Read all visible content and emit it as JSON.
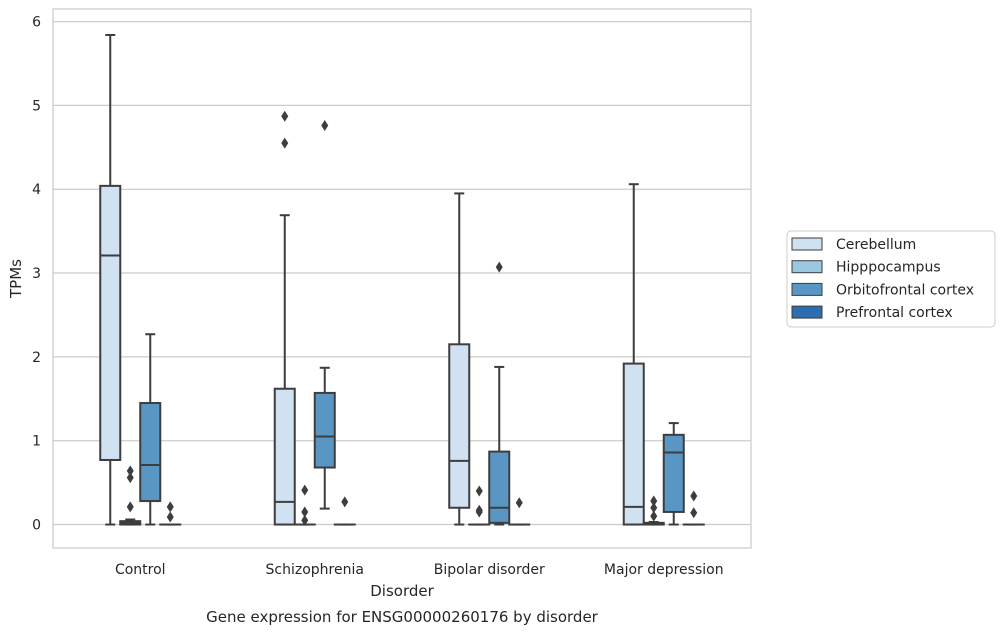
{
  "chart_data": {
    "type": "box",
    "title": "Gene expression for ENSG00000260176 by disorder",
    "xlabel": "Disorder",
    "ylabel": "TPMs",
    "ylim": [
      -0.28,
      6.15
    ],
    "yticks": [
      0,
      1,
      2,
      3,
      4,
      5,
      6
    ],
    "grid": true,
    "legend_position": "right",
    "categories": [
      "Control",
      "Schizophrenia",
      "Bipolar disorder",
      "Major depression"
    ],
    "series": [
      {
        "name": "Cerebellum",
        "color": "#d0e1f2",
        "boxes": [
          {
            "whisker_low": 0,
            "q1": 0.77,
            "median": 3.21,
            "q3": 4.04,
            "whisker_high": 5.84,
            "outliers": []
          },
          {
            "whisker_low": 0,
            "q1": 0,
            "median": 0.27,
            "q3": 1.62,
            "whisker_high": 3.69,
            "outliers": [
              4.55,
              4.87
            ]
          },
          {
            "whisker_low": 0,
            "q1": 0.2,
            "median": 0.76,
            "q3": 2.15,
            "whisker_high": 3.95,
            "outliers": []
          },
          {
            "whisker_low": 0,
            "q1": 0,
            "median": 0.21,
            "q3": 1.92,
            "whisker_high": 4.06,
            "outliers": []
          }
        ]
      },
      {
        "name": "Hipppocampus",
        "color": "#9ac8e0",
        "boxes": [
          {
            "whisker_low": 0,
            "q1": 0,
            "median": 0.02,
            "q3": 0.04,
            "whisker_high": 0.06,
            "outliers": [
              0.21,
              0.56,
              0.64
            ]
          },
          {
            "whisker_low": 0,
            "q1": 0,
            "median": 0,
            "q3": 0,
            "whisker_high": 0,
            "outliers": [
              0.05,
              0.15,
              0.41
            ]
          },
          {
            "whisker_low": 0,
            "q1": 0,
            "median": 0,
            "q3": 0,
            "whisker_high": 0,
            "outliers": [
              0.15,
              0.17,
              0.4
            ]
          },
          {
            "whisker_low": 0,
            "q1": 0,
            "median": 0.01,
            "q3": 0.02,
            "whisker_high": 0.03,
            "outliers": [
              0.1,
              0.2,
              0.28
            ]
          }
        ]
      },
      {
        "name": "Orbitofrontal cortex",
        "color": "#5a96c4",
        "boxes": [
          {
            "whisker_low": 0,
            "q1": 0.28,
            "median": 0.71,
            "q3": 1.45,
            "whisker_high": 2.27,
            "outliers": []
          },
          {
            "whisker_low": 0.19,
            "q1": 0.68,
            "median": 1.05,
            "q3": 1.57,
            "whisker_high": 1.87,
            "outliers": [
              4.76
            ]
          },
          {
            "whisker_low": 0,
            "q1": 0.02,
            "median": 0.2,
            "q3": 0.87,
            "whisker_high": 1.88,
            "outliers": [
              3.07
            ]
          },
          {
            "whisker_low": 0,
            "q1": 0.15,
            "median": 0.86,
            "q3": 1.07,
            "whisker_high": 1.21,
            "outliers": []
          }
        ]
      },
      {
        "name": "Prefrontal cortex",
        "color": "#2c6eb0",
        "boxes": [
          {
            "whisker_low": 0,
            "q1": 0,
            "median": 0,
            "q3": 0,
            "whisker_high": 0,
            "outliers": [
              0.09,
              0.21
            ]
          },
          {
            "whisker_low": 0,
            "q1": 0,
            "median": 0,
            "q3": 0,
            "whisker_high": 0,
            "outliers": [
              0.27
            ]
          },
          {
            "whisker_low": 0,
            "q1": 0,
            "median": 0,
            "q3": 0,
            "whisker_high": 0,
            "outliers": [
              0.26
            ]
          },
          {
            "whisker_low": 0,
            "q1": 0,
            "median": 0,
            "q3": 0,
            "whisker_high": 0,
            "outliers": [
              0.14,
              0.34
            ]
          }
        ]
      }
    ]
  }
}
